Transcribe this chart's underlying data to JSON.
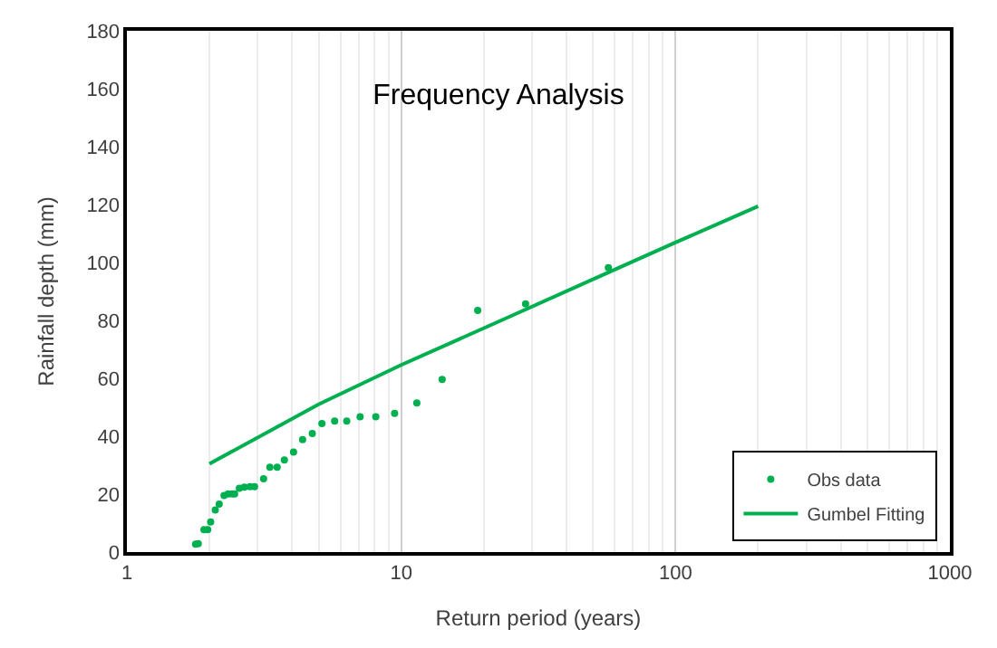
{
  "chart_data": {
    "type": "scatter",
    "title": "Frequency Analysis",
    "xlabel": "Return period (years)",
    "ylabel": "Rainfall depth (mm)",
    "log": "x",
    "xlim": [
      1,
      1000
    ],
    "xticks": [
      1,
      10,
      100,
      1000
    ],
    "ylim": [
      0,
      180
    ],
    "yticks": [
      0,
      20,
      40,
      60,
      80,
      100,
      120,
      140,
      160,
      180
    ],
    "grid": "x",
    "legend": "bottom right",
    "series": [
      {
        "name": "Obs data",
        "marker": "circle",
        "color": "#00b050",
        "x": [
          1.78,
          1.82,
          1.91,
          1.97,
          2.02,
          2.1,
          2.17,
          2.26,
          2.34,
          2.42,
          2.47,
          2.57,
          2.68,
          2.81,
          2.92,
          3.15,
          3.32,
          3.53,
          3.75,
          4.05,
          4.37,
          4.74,
          5.14,
          5.72,
          6.33,
          7.08,
          8.08,
          9.46,
          11.4,
          14.1,
          19.0,
          28.4,
          56.9
        ],
        "values": [
          2.7,
          2.9,
          7.7,
          7.7,
          10.4,
          14.5,
          16.6,
          19.5,
          20.1,
          20.1,
          20.1,
          22.0,
          22.4,
          22.6,
          22.6,
          25.3,
          29.3,
          29.3,
          31.8,
          34.5,
          38.8,
          40.9,
          44.4,
          45.2,
          45.2,
          46.7,
          46.7,
          47.9,
          51.5,
          59.6,
          83.4,
          85.7,
          98.2
        ]
      },
      {
        "name": "Gumbel Fitting",
        "type": "line",
        "line_style": "solid",
        "color": "#00b050",
        "x": [
          2,
          5,
          10,
          25,
          50,
          100,
          200
        ],
        "values": [
          30.5,
          51.0,
          64.6,
          81.4,
          94.2,
          106.9,
          119.4
        ]
      }
    ]
  }
}
